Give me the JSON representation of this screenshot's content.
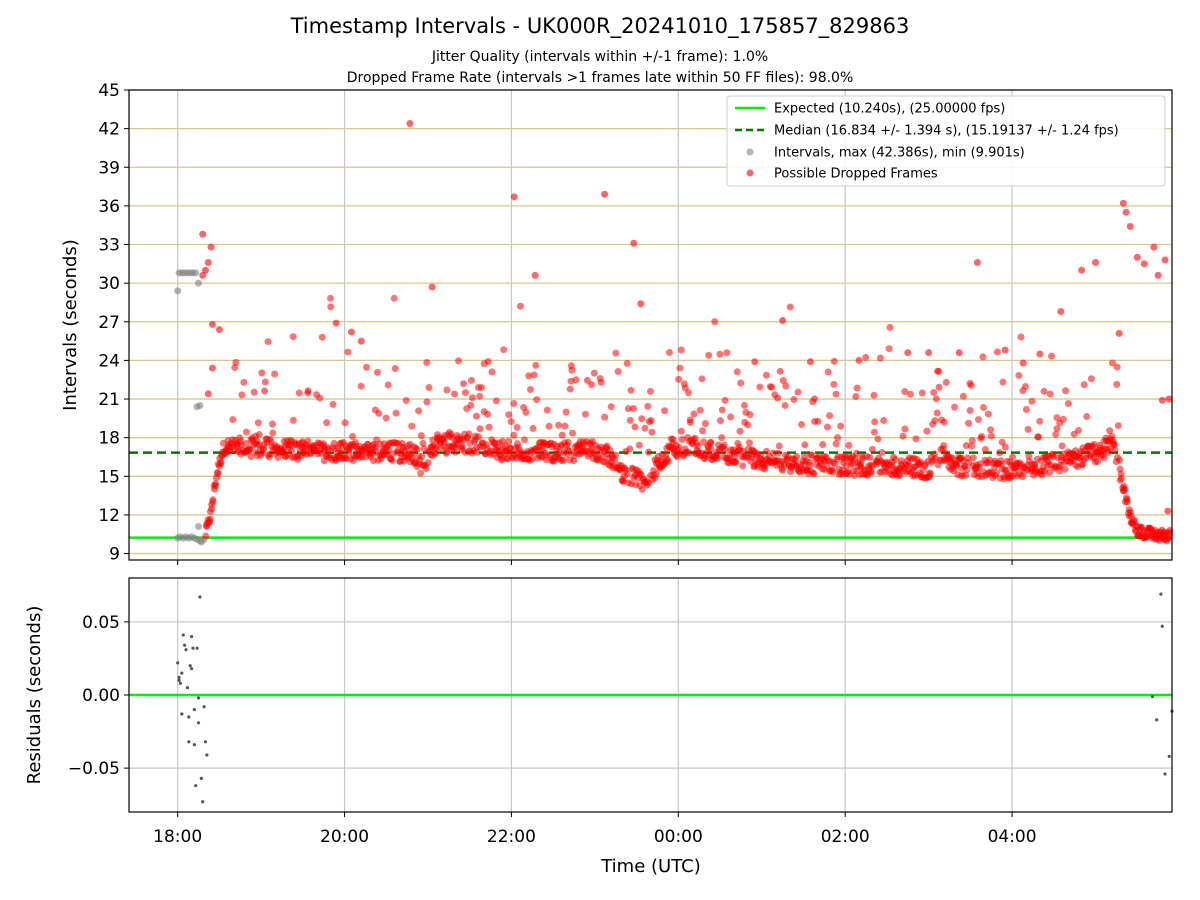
{
  "title": "Timestamp Intervals - UK000R_20241010_175857_829863",
  "subtitle_1": "Jitter Quality (intervals within +/-1 frame): 1.0%",
  "subtitle_2": "Dropped Frame Rate (intervals >1 frames late within 50 FF files): 98.0%",
  "colors": {
    "expected": "#00ee00",
    "median": "#007a00",
    "intervals": "#808080",
    "dropped": "#ff0000",
    "hgrid": "#d8c78a",
    "vgrid": "#c8c8c8"
  },
  "chart_data": [
    {
      "type": "scatter",
      "name": "intervals",
      "xlabel": "",
      "ylabel": "Intervals (seconds)",
      "xlim": [
        "17:25",
        "05:55"
      ],
      "ylim": [
        8.5,
        45
      ],
      "yticks": [
        9,
        12,
        15,
        18,
        21,
        24,
        27,
        30,
        33,
        36,
        39,
        42,
        45
      ],
      "yticklabels": [
        "9",
        "12",
        "15",
        "18",
        "21",
        "24",
        "27",
        "30",
        "33",
        "36",
        "39",
        "42",
        "45"
      ],
      "xticks": [
        "18:00",
        "20:00",
        "22:00",
        "00:00",
        "02:00",
        "04:00"
      ],
      "grid": true,
      "legend_position": "top-right",
      "legend": [
        "Expected (10.240s), (25.00000 fps)",
        "Median (16.834 +/- 1.394 s), (15.19137 +/- 1.24 fps)",
        "Intervals, max (42.386s), min (9.901s)",
        "Possible Dropped Frames"
      ],
      "expected_value": 10.24,
      "median_value": 16.834,
      "max_interval": 42.386,
      "min_interval": 9.901,
      "series": [
        {
          "name": "Intervals, max (42.386s), min (9.901s)",
          "points": [
            [
              "18:00",
              29.4
            ],
            [
              "18:01",
              30.8
            ],
            [
              "18:03",
              30.8
            ],
            [
              "18:05",
              30.8
            ],
            [
              "18:07",
              30.8
            ],
            [
              "18:09",
              30.8
            ],
            [
              "18:11",
              30.8
            ],
            [
              "18:13",
              30.8
            ],
            [
              "18:15",
              30.0
            ],
            [
              "18:14",
              20.4
            ],
            [
              "18:16",
              20.5
            ],
            [
              "18:15",
              11.1
            ],
            [
              "18:00",
              10.2
            ],
            [
              "18:02",
              10.3
            ],
            [
              "18:04",
              10.2
            ],
            [
              "18:06",
              10.3
            ],
            [
              "18:08",
              10.2
            ],
            [
              "18:10",
              10.3
            ],
            [
              "18:12",
              10.2
            ],
            [
              "18:14",
              10.1
            ],
            [
              "18:16",
              10.0
            ],
            [
              "18:17",
              9.9
            ],
            [
              "18:19",
              10.1
            ],
            [
              "05:38",
              10.3
            ],
            [
              "05:40",
              10.2
            ],
            [
              "05:42",
              10.1
            ],
            [
              "05:44",
              10.3
            ],
            [
              "05:46",
              10.0
            ],
            [
              "05:48",
              10.2
            ]
          ]
        },
        {
          "name": "Possible Dropped Frames",
          "band": [
            [
              "18:20",
              10.5
            ],
            [
              "18:24",
              12.2
            ],
            [
              "18:27",
              14.5
            ],
            [
              "18:30",
              16.0
            ],
            [
              "18:33",
              17.2
            ],
            [
              "18:40",
              17.3
            ],
            [
              "19:00",
              17.2
            ],
            [
              "19:30",
              17.0
            ],
            [
              "20:00",
              16.9
            ],
            [
              "20:30",
              17.0
            ],
            [
              "20:50",
              16.8
            ],
            [
              "20:55",
              15.8
            ],
            [
              "21:00",
              16.2
            ],
            [
              "21:05",
              17.5
            ],
            [
              "21:30",
              17.6
            ],
            [
              "21:50",
              17.0
            ],
            [
              "22:30",
              16.9
            ],
            [
              "23:00",
              17.0
            ],
            [
              "23:10",
              16.6
            ],
            [
              "23:20",
              15.3
            ],
            [
              "23:35",
              14.5
            ],
            [
              "23:45",
              15.8
            ],
            [
              "23:55",
              17.2
            ],
            [
              "00:10",
              17.3
            ],
            [
              "00:30",
              16.8
            ],
            [
              "00:50",
              16.4
            ],
            [
              "01:20",
              16.0
            ],
            [
              "02:00",
              15.8
            ],
            [
              "02:30",
              15.8
            ],
            [
              "03:00",
              15.6
            ],
            [
              "03:10",
              16.9
            ],
            [
              "03:20",
              15.8
            ],
            [
              "04:00",
              15.5
            ],
            [
              "04:20",
              15.7
            ],
            [
              "04:40",
              16.3
            ],
            [
              "05:00",
              16.8
            ],
            [
              "05:12",
              17.5
            ],
            [
              "05:16",
              16.5
            ],
            [
              "05:20",
              14.0
            ],
            [
              "05:25",
              12.0
            ],
            [
              "05:30",
              10.8
            ],
            [
              "05:40",
              10.5
            ],
            [
              "05:55",
              10.4
            ]
          ],
          "notable_points": [
            [
              "18:18",
              30.6
            ],
            [
              "18:20",
              31.0
            ],
            [
              "18:22",
              31.6
            ],
            [
              "18:24",
              32.8
            ],
            [
              "18:18",
              33.8
            ],
            [
              "18:25",
              26.8
            ],
            [
              "18:30",
              26.4
            ],
            [
              "18:25",
              23.4
            ],
            [
              "18:22",
              21.4
            ],
            [
              "20:47",
              42.4
            ],
            [
              "22:02",
              36.7
            ],
            [
              "23:07",
              36.9
            ],
            [
              "23:28",
              33.1
            ],
            [
              "23:33",
              28.4
            ],
            [
              "22:17",
              30.6
            ],
            [
              "21:03",
              29.7
            ],
            [
              "19:54",
              26.9
            ],
            [
              "20:05",
              26.2
            ],
            [
              "20:12",
              25.5
            ],
            [
              "00:55",
              23.9
            ],
            [
              "01:15",
              27.1
            ],
            [
              "01:35",
              23.9
            ],
            [
              "02:10",
              24.0
            ],
            [
              "02:45",
              24.6
            ],
            [
              "03:00",
              24.6
            ],
            [
              "03:22",
              24.6
            ],
            [
              "03:35",
              31.6
            ],
            [
              "03:55",
              24.8
            ],
            [
              "04:08",
              23.8
            ],
            [
              "04:20",
              24.5
            ],
            [
              "04:35",
              27.8
            ],
            [
              "04:50",
              31.0
            ],
            [
              "05:00",
              31.6
            ],
            [
              "05:17",
              26.1
            ],
            [
              "05:20",
              36.2
            ],
            [
              "05:22",
              35.5
            ],
            [
              "05:25",
              34.4
            ],
            [
              "05:30",
              32.0
            ],
            [
              "05:35",
              31.5
            ],
            [
              "05:42",
              32.8
            ],
            [
              "05:45",
              30.6
            ],
            [
              "05:50",
              31.8
            ],
            [
              "05:55",
              21.0
            ],
            [
              "05:48",
              20.9
            ],
            [
              "05:52",
              12.3
            ]
          ]
        }
      ]
    },
    {
      "type": "scatter",
      "name": "residuals",
      "xlabel": "Time (UTC)",
      "ylabel": "Residuals (seconds)",
      "xlim": [
        "17:25",
        "05:55"
      ],
      "ylim": [
        -0.08,
        0.08
      ],
      "yticks": [
        -0.05,
        0.0,
        0.05
      ],
      "yticklabels": [
        "−0.05",
        "0.00",
        "0.05"
      ],
      "xticks": [
        "18:00",
        "20:00",
        "22:00",
        "00:00",
        "02:00",
        "04:00"
      ],
      "xticklabels": [
        "18:00",
        "20:00",
        "22:00",
        "00:00",
        "02:00",
        "04:00"
      ],
      "zero_line": 0.0,
      "points": [
        [
          "18:00",
          0.022
        ],
        [
          "18:01",
          0.012
        ],
        [
          "18:01",
          0.01
        ],
        [
          "18:02",
          0.008
        ],
        [
          "18:03",
          0.015
        ],
        [
          "18:03",
          -0.013
        ],
        [
          "18:04",
          0.041
        ],
        [
          "18:05",
          0.034
        ],
        [
          "18:06",
          0.031
        ],
        [
          "18:07",
          0.005
        ],
        [
          "18:08",
          -0.015
        ],
        [
          "18:08",
          -0.032
        ],
        [
          "18:09",
          0.02
        ],
        [
          "18:10",
          0.018
        ],
        [
          "18:10",
          0.04
        ],
        [
          "18:11",
          0.032
        ],
        [
          "18:12",
          -0.01
        ],
        [
          "18:12",
          -0.034
        ],
        [
          "18:13",
          -0.062
        ],
        [
          "18:14",
          0.032
        ],
        [
          "18:15",
          -0.002
        ],
        [
          "18:15",
          -0.019
        ],
        [
          "18:16",
          0.067
        ],
        [
          "18:17",
          -0.057
        ],
        [
          "18:18",
          -0.073
        ],
        [
          "18:19",
          -0.008
        ],
        [
          "18:20",
          -0.032
        ],
        [
          "18:21",
          -0.041
        ],
        [
          "05:41",
          -0.001
        ],
        [
          "05:44",
          -0.017
        ],
        [
          "05:47",
          0.069
        ],
        [
          "05:48",
          0.047
        ],
        [
          "05:50",
          -0.054
        ],
        [
          "05:53",
          -0.042
        ],
        [
          "05:58",
          -0.011
        ]
      ]
    }
  ]
}
